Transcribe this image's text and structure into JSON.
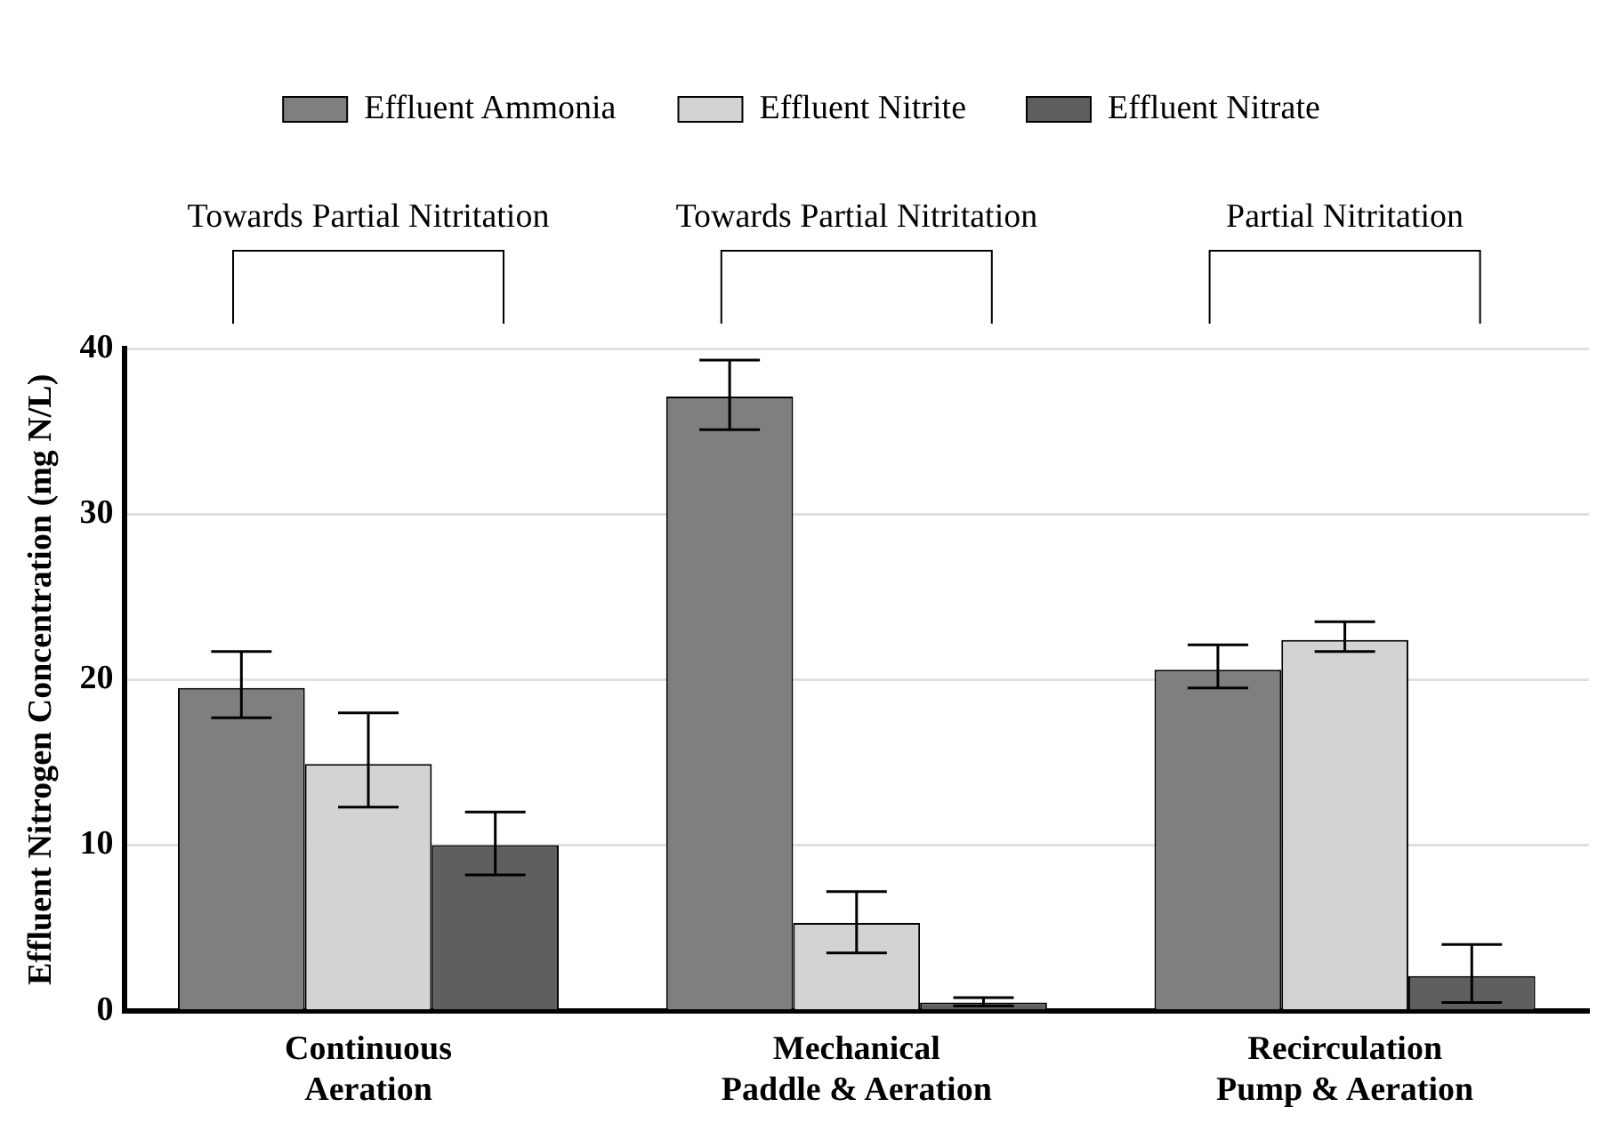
{
  "chart_data": {
    "type": "bar",
    "ylabel": "Effluent Nitrogen Concentration (mg N/L)",
    "categories": [
      "Continuous\nAeration",
      "Mechanical\nPaddle & Aeration",
      "Recirculation\nPump & Aeration"
    ],
    "series": [
      {
        "name": "Effluent Ammonia",
        "color": "#7f7f7f",
        "values": [
          19.5,
          37.1,
          20.6
        ],
        "errors": [
          [
            17.7,
            21.7
          ],
          [
            35.1,
            39.3
          ],
          [
            19.5,
            22.1
          ]
        ]
      },
      {
        "name": "Effluent Nitrite",
        "color": "#d3d3d3",
        "values": [
          14.9,
          5.3,
          22.4
        ],
        "errors": [
          [
            12.3,
            18.0
          ],
          [
            3.5,
            7.2
          ],
          [
            21.7,
            23.5
          ]
        ]
      },
      {
        "name": "Effluent Nitrate",
        "color": "#5f5f5f",
        "values": [
          10.0,
          0.5,
          2.1
        ],
        "errors": [
          [
            8.2,
            12.0
          ],
          [
            0.3,
            0.8
          ],
          [
            0.5,
            4.0
          ]
        ]
      }
    ],
    "annotations": [
      "Towards Partial Nitritation",
      "Towards Partial Nitritation",
      "Partial Nitritation"
    ],
    "ylim": [
      0,
      40
    ],
    "yticks": [
      0,
      10,
      20,
      30,
      40
    ],
    "grid": "y",
    "legend": "top"
  }
}
